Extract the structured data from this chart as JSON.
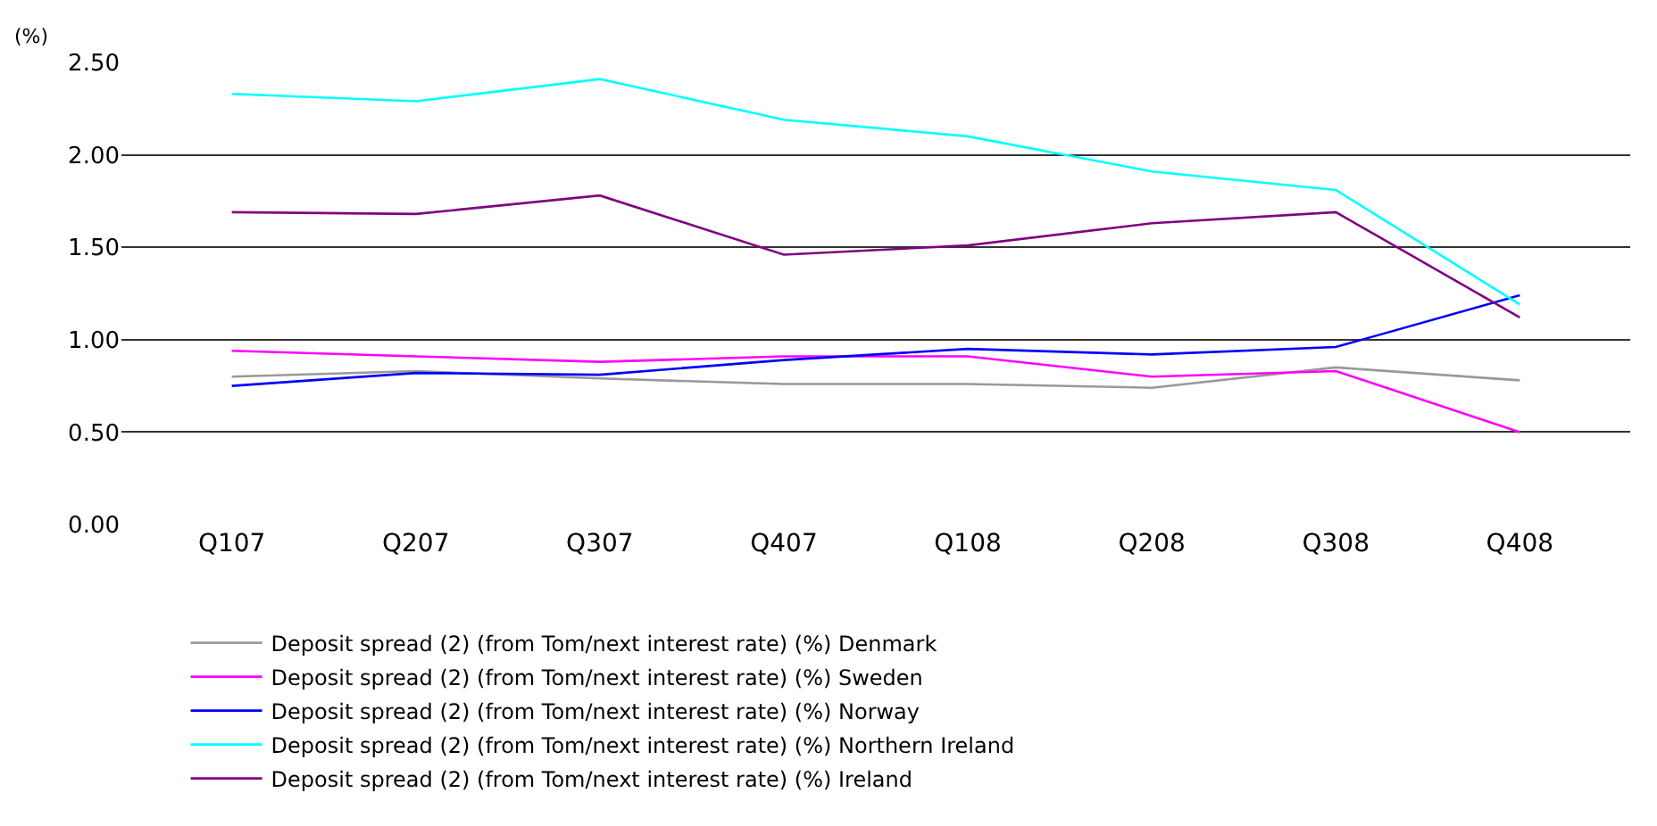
{
  "chart_data": {
    "type": "line",
    "ylabel": "(%)",
    "categories": [
      "Q107",
      "Q207",
      "Q307",
      "Q407",
      "Q108",
      "Q208",
      "Q308",
      "Q408"
    ],
    "series": [
      {
        "name": "Deposit spread (2) (from Tom/next interest rate) (%) Denmark",
        "color": "#999999",
        "values": [
          0.8,
          0.83,
          0.79,
          0.76,
          0.76,
          0.74,
          0.85,
          0.78
        ]
      },
      {
        "name": "Deposit spread (2) (from Tom/next interest rate) (%) Sweden",
        "color": "#ff00ff",
        "values": [
          0.94,
          0.91,
          0.88,
          0.91,
          0.91,
          0.8,
          0.83,
          0.5
        ]
      },
      {
        "name": "Deposit spread (2) (from Tom/next interest rate) (%) Norway",
        "color": "#0000ff",
        "values": [
          0.75,
          0.82,
          0.81,
          0.89,
          0.95,
          0.92,
          0.96,
          1.24
        ]
      },
      {
        "name": "Deposit spread (2) (from Tom/next interest rate) (%) Northern Ireland",
        "color": "#00ffff",
        "values": [
          2.33,
          2.29,
          2.41,
          2.19,
          2.1,
          1.91,
          1.81,
          1.19
        ]
      },
      {
        "name": "Deposit spread (2) (from Tom/next interest rate) (%) Ireland",
        "color": "#800080",
        "values": [
          1.69,
          1.68,
          1.78,
          1.46,
          1.51,
          1.63,
          1.69,
          1.12
        ]
      }
    ],
    "ylim": [
      0,
      2.5
    ],
    "yticks": [
      {
        "value": 0,
        "label": "0.00"
      },
      {
        "value": 0.5,
        "label": "0.50"
      },
      {
        "value": 1,
        "label": "1.00"
      },
      {
        "value": 1.5,
        "label": "1.50"
      },
      {
        "value": 2,
        "label": "2.00"
      },
      {
        "value": 2.5,
        "label": "2.50"
      }
    ],
    "grid": "y",
    "legend": "bottom",
    "marker": "none",
    "line_style": "solid"
  }
}
